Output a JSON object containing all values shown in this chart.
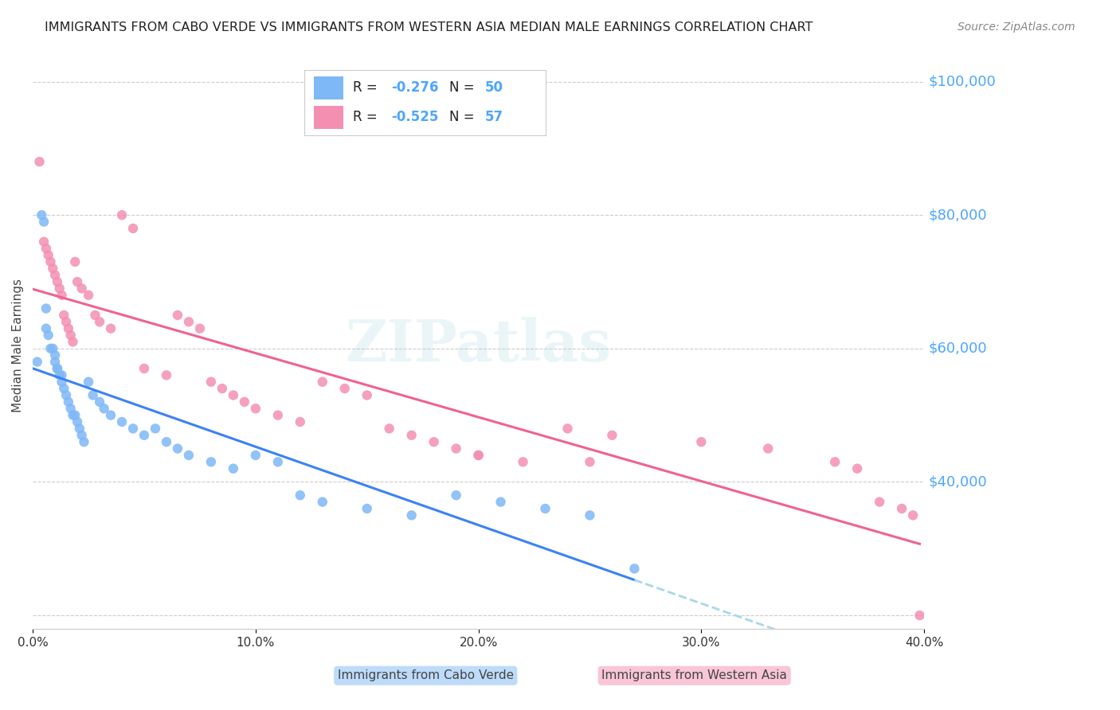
{
  "title": "IMMIGRANTS FROM CABO VERDE VS IMMIGRANTS FROM WESTERN ASIA MEDIAN MALE EARNINGS CORRELATION CHART",
  "source": "Source: ZipAtlas.com",
  "ylabel": "Median Male Earnings",
  "xlabel_ticks": [
    "0.0%",
    "10.0%",
    "20.0%",
    "30.0%",
    "40.0%"
  ],
  "xlabel_vals": [
    0.0,
    0.1,
    0.2,
    0.3,
    0.4
  ],
  "ytick_vals": [
    20000,
    40000,
    60000,
    80000,
    100000
  ],
  "ytick_labels": [
    "",
    "$40,000",
    "$60,000",
    "$80,000",
    "$100,000"
  ],
  "xmin": 0.0,
  "xmax": 0.4,
  "ymin": 18000,
  "ymax": 103000,
  "watermark": "ZIPatlas",
  "legend_r1": "R = -0.276",
  "legend_n1": "N = 50",
  "legend_r2": "R = -0.525",
  "legend_n2": "N = 57",
  "color_cabo": "#7EB8F7",
  "color_western": "#F48FB1",
  "color_line_cabo": "#3B82F6",
  "color_line_western": "#F06292",
  "color_dashed": "#A8D8EA",
  "color_ytick": "#4DA6FF",
  "title_color": "#222222",
  "source_color": "#888888",
  "cabo_x": [
    0.002,
    0.004,
    0.005,
    0.006,
    0.006,
    0.007,
    0.008,
    0.009,
    0.01,
    0.01,
    0.011,
    0.011,
    0.012,
    0.013,
    0.013,
    0.014,
    0.015,
    0.016,
    0.017,
    0.018,
    0.019,
    0.02,
    0.021,
    0.022,
    0.023,
    0.025,
    0.027,
    0.03,
    0.032,
    0.035,
    0.04,
    0.045,
    0.05,
    0.055,
    0.06,
    0.065,
    0.07,
    0.08,
    0.09,
    0.1,
    0.11,
    0.12,
    0.13,
    0.15,
    0.17,
    0.19,
    0.21,
    0.23,
    0.25,
    0.27
  ],
  "cabo_y": [
    58000,
    80000,
    79000,
    66000,
    63000,
    62000,
    60000,
    60000,
    59000,
    58000,
    57000,
    57000,
    56000,
    56000,
    55000,
    54000,
    53000,
    52000,
    51000,
    50000,
    50000,
    49000,
    48000,
    47000,
    46000,
    55000,
    53000,
    52000,
    51000,
    50000,
    49000,
    48000,
    47000,
    48000,
    46000,
    45000,
    44000,
    43000,
    42000,
    44000,
    43000,
    38000,
    37000,
    36000,
    35000,
    38000,
    37000,
    36000,
    35000,
    27000
  ],
  "western_x": [
    0.003,
    0.005,
    0.006,
    0.007,
    0.008,
    0.009,
    0.01,
    0.011,
    0.012,
    0.013,
    0.014,
    0.015,
    0.016,
    0.017,
    0.018,
    0.019,
    0.02,
    0.022,
    0.025,
    0.028,
    0.03,
    0.035,
    0.04,
    0.045,
    0.05,
    0.06,
    0.065,
    0.07,
    0.075,
    0.08,
    0.085,
    0.09,
    0.095,
    0.1,
    0.11,
    0.12,
    0.13,
    0.14,
    0.15,
    0.16,
    0.17,
    0.18,
    0.19,
    0.2,
    0.22,
    0.24,
    0.26,
    0.3,
    0.33,
    0.36,
    0.37,
    0.38,
    0.39,
    0.395,
    0.398,
    0.2,
    0.25
  ],
  "western_y": [
    88000,
    76000,
    75000,
    74000,
    73000,
    72000,
    71000,
    70000,
    69000,
    68000,
    65000,
    64000,
    63000,
    62000,
    61000,
    73000,
    70000,
    69000,
    68000,
    65000,
    64000,
    63000,
    80000,
    78000,
    57000,
    56000,
    65000,
    64000,
    63000,
    55000,
    54000,
    53000,
    52000,
    51000,
    50000,
    49000,
    55000,
    54000,
    53000,
    48000,
    47000,
    46000,
    45000,
    44000,
    43000,
    48000,
    47000,
    46000,
    45000,
    43000,
    42000,
    37000,
    36000,
    35000,
    20000,
    44000,
    43000
  ]
}
